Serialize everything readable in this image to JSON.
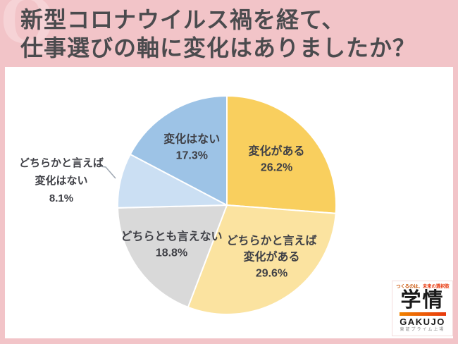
{
  "header": {
    "watermark": "Q",
    "title_line1": "新型コロナウイルス禍を経て、",
    "title_line2": "仕事選びの軸に変化はありましたか？"
  },
  "chart_data": {
    "type": "pie",
    "title": "新型コロナウイルス禍を経て、仕事選びの軸に変化はありましたか？",
    "unit": "%",
    "start_angle_deg": 0,
    "direction": "clockwise",
    "label_color": "#3F4046",
    "slices": [
      {
        "label": "変化がある",
        "value": 26.2,
        "color": "#F9CF5E",
        "label_placement": "inside",
        "label_lines": [
          "変化がある",
          "26.2%"
        ]
      },
      {
        "label": "どちらかと言えば変化がある",
        "value": 29.6,
        "color": "#FBE3A0",
        "label_placement": "inside",
        "label_lines": [
          "どちらかと言えば",
          "変化がある",
          "29.6%"
        ]
      },
      {
        "label": "どちらとも言えない",
        "value": 18.8,
        "color": "#D9D9D9",
        "label_placement": "inside",
        "label_lines": [
          "どちらとも言えない",
          "18.8%"
        ]
      },
      {
        "label": "どちらかと言えば変化はない",
        "value": 8.1,
        "color": "#CBDFF3",
        "label_placement": "outside",
        "label_lines": [
          "どちらかと言えば",
          "変化はない",
          "8.1%"
        ]
      },
      {
        "label": "変化はない",
        "value": 17.3,
        "color": "#9DC3E6",
        "label_placement": "inside",
        "label_lines": [
          "変化はない",
          "17.3%"
        ]
      }
    ]
  },
  "logo": {
    "tagline_1": "つくるのは、",
    "tagline_2": "未来の選択肢",
    "brand_jp": "学情",
    "brand_en": "GAKUJO",
    "listing": "東証プライム上場"
  },
  "colors": {
    "page_pink": "#F2C4C8",
    "watermark_pink": "#F6D3D6",
    "title_text": "#4B4B4E",
    "label_text": "#3F4046",
    "leader_line": "#9FA8B2",
    "tagline_1": "#C94F00",
    "tagline_2": "#E8380D",
    "logo_accent_from": "#F08300",
    "logo_accent_to": "#E8380D",
    "logo_text": "#1A1A1A",
    "listing_text": "#8A8A8A"
  }
}
